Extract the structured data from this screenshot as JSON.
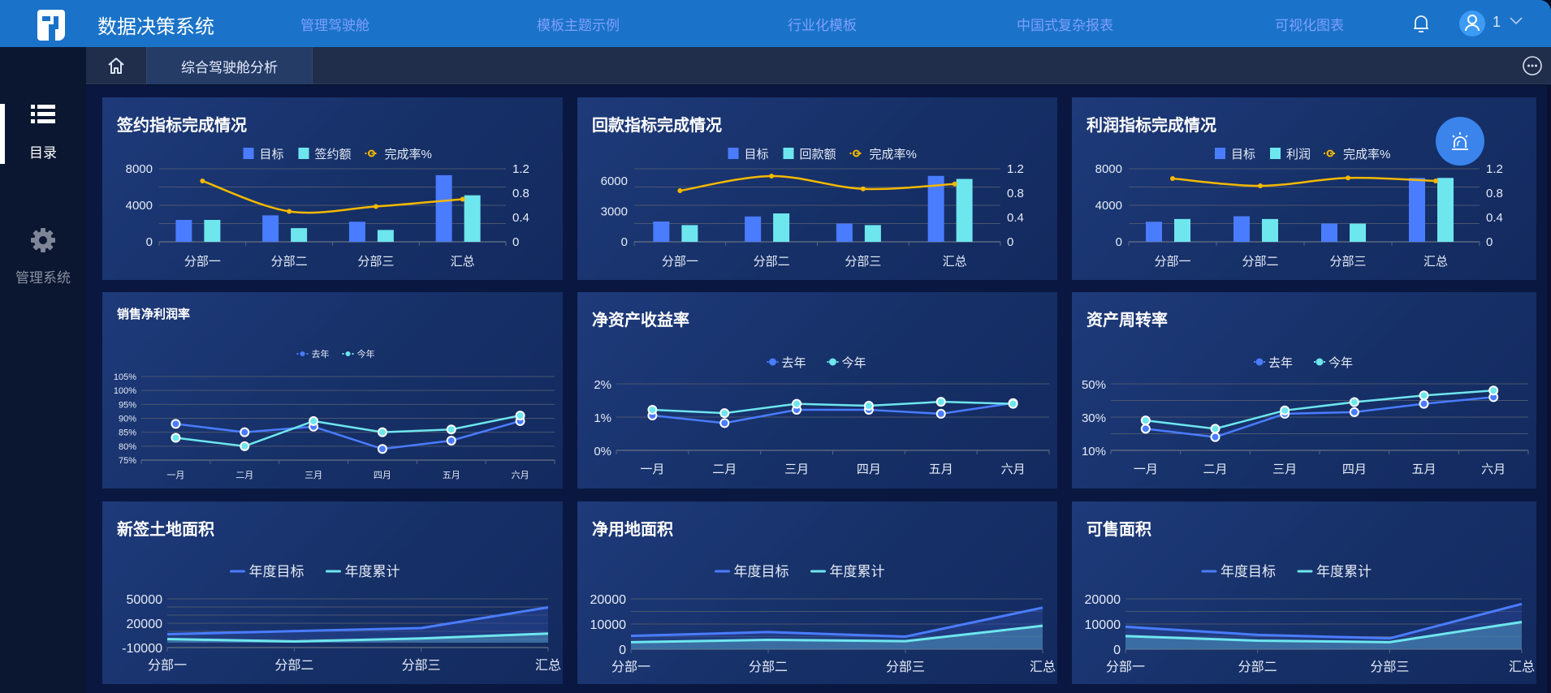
{
  "header": {
    "app_title": "数据决策系统",
    "nav": [
      "管理驾驶舱",
      "模板主题示例",
      "行业化模板",
      "中国式复杂报表",
      "可视化图表"
    ],
    "user_name": "1",
    "icons": {
      "logo": "fr-logo-icon",
      "bell": "bell-icon",
      "avatar": "user-avatar-icon",
      "caret": "chevron-down-icon"
    }
  },
  "sidebar": {
    "items": [
      {
        "label": "目录",
        "icon": "list-icon",
        "active": true
      },
      {
        "label": "管理系统",
        "icon": "gear-icon",
        "active": false
      }
    ]
  },
  "tabs": {
    "home_icon": "home-icon",
    "active_tab": "综合驾驶舱分析",
    "more_icon": "more-icon"
  },
  "colors": {
    "topbar": "#1a73c8",
    "bar_target": "#4a7cff",
    "bar_actual": "#6ee6ee",
    "rate_line": "#f5b800",
    "last_year": "#4a7cff",
    "this_year": "#6ee6ee",
    "grid": "#4a5670",
    "text": "#e6ecf7"
  },
  "chart_data": [
    {
      "id": "signing",
      "type": "bar",
      "title": "签约指标完成情况",
      "categories": [
        "分部一",
        "分部二",
        "分部三",
        "汇总"
      ],
      "series": [
        {
          "name": "目标",
          "kind": "bar",
          "values": [
            2400,
            2900,
            2200,
            7300
          ]
        },
        {
          "name": "签约额",
          "kind": "bar",
          "values": [
            2400,
            1500,
            1300,
            5100
          ]
        },
        {
          "name": "完成率%",
          "kind": "line",
          "axis": "right",
          "values": [
            1.0,
            0.5,
            0.58,
            0.7
          ]
        }
      ],
      "left_axis": {
        "ticks": [
          0,
          4000,
          8000
        ],
        "max": 8000
      },
      "right_axis": {
        "ticks": [
          0,
          0.4,
          0.8,
          1.2
        ],
        "max": 1.2
      }
    },
    {
      "id": "payment",
      "type": "bar",
      "title": "回款指标完成情况",
      "categories": [
        "分部一",
        "分部二",
        "分部三",
        "汇总"
      ],
      "series": [
        {
          "name": "目标",
          "kind": "bar",
          "values": [
            2000,
            2500,
            1800,
            6500
          ]
        },
        {
          "name": "回款额",
          "kind": "bar",
          "values": [
            1650,
            2800,
            1650,
            6200
          ]
        },
        {
          "name": "完成率%",
          "kind": "line",
          "axis": "right",
          "values": [
            0.84,
            1.08,
            0.87,
            0.95
          ]
        }
      ],
      "left_axis": {
        "ticks": [
          0,
          3000,
          6000
        ],
        "max": 7200
      },
      "right_axis": {
        "ticks": [
          0,
          0.4,
          0.8,
          1.2
        ],
        "max": 1.2
      }
    },
    {
      "id": "profit",
      "type": "bar",
      "title": "利润指标完成情况",
      "categories": [
        "分部一",
        "分部二",
        "分部三",
        "汇总"
      ],
      "series": [
        {
          "name": "目标",
          "kind": "bar",
          "values": [
            2200,
            2800,
            2000,
            7000
          ]
        },
        {
          "name": "利润",
          "kind": "bar",
          "values": [
            2500,
            2500,
            2000,
            7000
          ]
        },
        {
          "name": "完成率%",
          "kind": "line",
          "axis": "right",
          "values": [
            1.04,
            0.92,
            1.05,
            1.0
          ]
        }
      ],
      "left_axis": {
        "ticks": [
          0,
          4000,
          8000
        ],
        "max": 8000
      },
      "right_axis": {
        "ticks": [
          0,
          0.4,
          0.8,
          1.2
        ],
        "max": 1.2
      }
    },
    {
      "id": "net_margin",
      "type": "line",
      "title": "销售净利润率",
      "small_title": true,
      "categories": [
        "一月",
        "二月",
        "三月",
        "四月",
        "五月",
        "六月"
      ],
      "series": [
        {
          "name": "去年",
          "values": [
            88,
            85,
            87,
            79,
            82,
            89
          ]
        },
        {
          "name": "今年",
          "values": [
            83,
            80,
            89,
            85,
            86,
            91
          ]
        }
      ],
      "y_axis": {
        "ticks": [
          "75%",
          "80%",
          "85%",
          "90%",
          "95%",
          "100%",
          "105%"
        ],
        "min": 75,
        "max": 105
      }
    },
    {
      "id": "roe",
      "type": "line",
      "title": "净资产收益率",
      "categories": [
        "一月",
        "二月",
        "三月",
        "四月",
        "五月",
        "六月"
      ],
      "series": [
        {
          "name": "去年",
          "values": [
            1.05,
            0.82,
            1.22,
            1.22,
            1.1,
            1.42
          ]
        },
        {
          "name": "今年",
          "values": [
            1.22,
            1.12,
            1.4,
            1.34,
            1.46,
            1.4
          ]
        }
      ],
      "y_axis": {
        "ticks": [
          "0%",
          "1%",
          "2%"
        ],
        "min": 0,
        "max": 2
      }
    },
    {
      "id": "asset_turnover",
      "type": "line",
      "title": "资产周转率",
      "categories": [
        "一月",
        "二月",
        "三月",
        "四月",
        "五月",
        "六月"
      ],
      "series": [
        {
          "name": "去年",
          "values": [
            23,
            18,
            32,
            33,
            38,
            42
          ]
        },
        {
          "name": "今年",
          "values": [
            28,
            23,
            34,
            39,
            43,
            46
          ]
        }
      ],
      "y_axis": {
        "ticks": [
          "10%",
          "30%",
          "50%"
        ],
        "min": 10,
        "max": 50,
        "gridlines": 5
      }
    },
    {
      "id": "new_land",
      "type": "area",
      "title": "新签土地面积",
      "categories": [
        "分部一",
        "分部二",
        "分部三",
        "汇总"
      ],
      "series": [
        {
          "name": "年度目标",
          "values": [
            12000,
            17000,
            22000,
            56000
          ]
        },
        {
          "name": "年度累计",
          "values": [
            4000,
            0,
            5000,
            13000
          ]
        }
      ],
      "y_axis": {
        "ticks": [
          "-10000",
          "20000",
          "50000"
        ],
        "min": -10000,
        "max": 70000,
        "gridlines": 7
      }
    },
    {
      "id": "net_land",
      "type": "area",
      "title": "净用地面积",
      "categories": [
        "分部一",
        "分部二",
        "分部三",
        "汇总"
      ],
      "series": [
        {
          "name": "年度目标",
          "values": [
            5300,
            6800,
            5000,
            16500
          ]
        },
        {
          "name": "年度累计",
          "values": [
            2800,
            3700,
            3200,
            9300
          ]
        }
      ],
      "y_axis": {
        "ticks": [
          "0",
          "10000",
          "20000"
        ],
        "min": 0,
        "max": 20000,
        "gridlines": 5
      }
    },
    {
      "id": "saleable_area",
      "type": "area",
      "title": "可售面积",
      "categories": [
        "分部一",
        "分部二",
        "分部三",
        "汇总"
      ],
      "series": [
        {
          "name": "年度目标",
          "values": [
            8900,
            5700,
            4300,
            18000
          ]
        },
        {
          "name": "年度累计",
          "values": [
            5200,
            3400,
            2800,
            10800
          ]
        }
      ],
      "y_axis": {
        "ticks": [
          "0",
          "10000",
          "20000"
        ],
        "min": 0,
        "max": 20000,
        "gridlines": 5
      }
    }
  ],
  "alert_button": {
    "icon": "alarm-siren-icon"
  }
}
